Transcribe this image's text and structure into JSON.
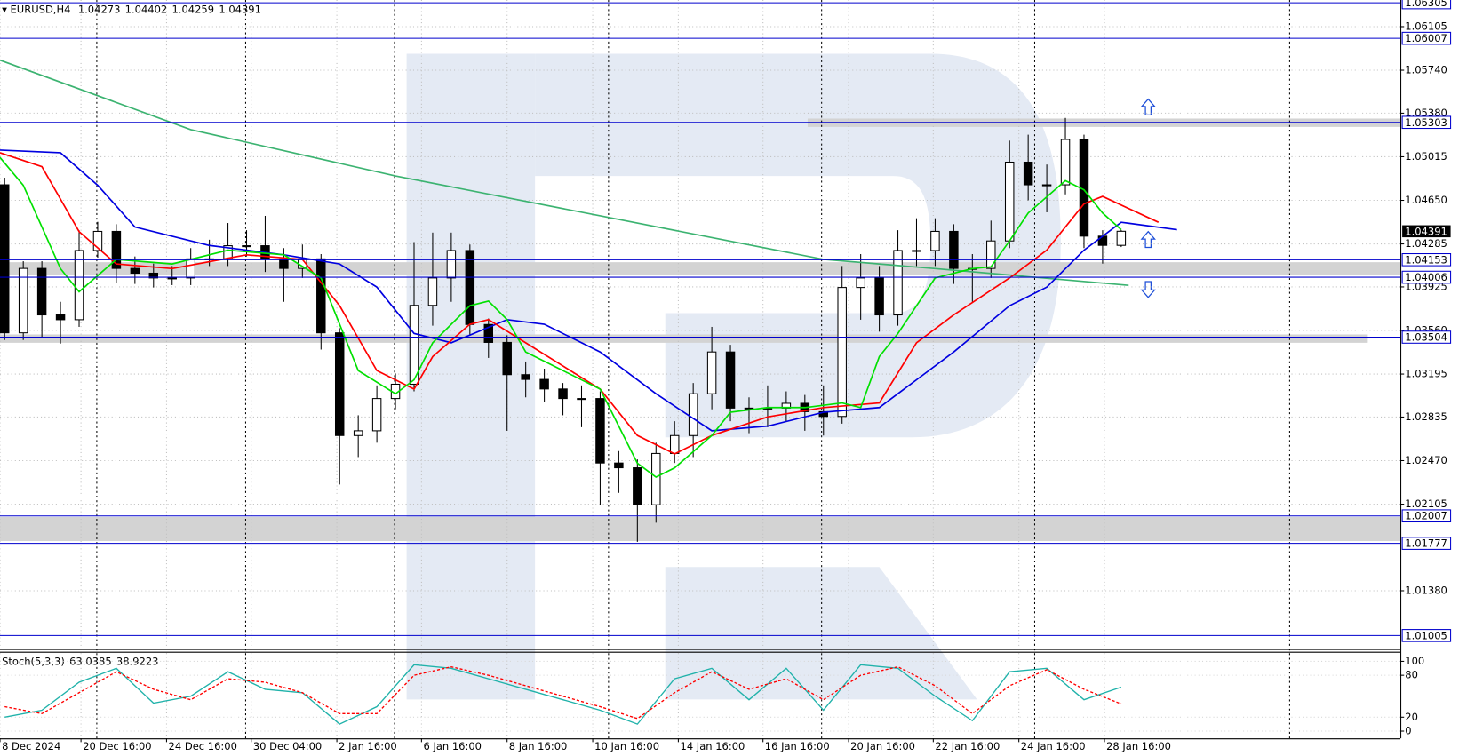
{
  "chart_data": [
    {
      "type": "candlestick",
      "title": "EURUSD,H4",
      "xlim": [
        0.75,
        76
      ],
      "xticks": [
        {
          "value": 0.75,
          "label": "8 Dec 2024"
        },
        {
          "value": 5.1,
          "label": "20 Dec 16:00"
        },
        {
          "value": 9.7,
          "label": "24 Dec 16:00"
        },
        {
          "value": 14.25,
          "label": "30 Dec 04:00"
        },
        {
          "value": 18.85,
          "label": "2 Jan 16:00"
        },
        {
          "value": 23.4,
          "label": "6 Jan 16:00"
        },
        {
          "value": 28,
          "label": "8 Jan 16:00"
        },
        {
          "value": 32.6,
          "label": "10 Jan 16:00"
        },
        {
          "value": 37.2,
          "label": "14 Jan 16:00"
        },
        {
          "value": 41.75,
          "label": "16 Jan 16:00"
        },
        {
          "value": 46.35,
          "label": "20 Jan 16:00"
        },
        {
          "value": 50.9,
          "label": "22 Jan 16:00"
        },
        {
          "value": 55.5,
          "label": "24 Jan 16:00"
        },
        {
          "value": 60.1,
          "label": "28 Jan 16:00"
        }
      ],
      "separators": [
        5.95,
        13.95,
        21.95,
        33.45,
        44.9,
        56.35,
        70.05
      ],
      "ylim": [
        1.00896,
        1.06328
      ],
      "yticks": [
        1.06105,
        {
          "value": 1.0574,
          "label": "1.05740"
        },
        {
          "value": 1.0538,
          "label": "1.05380"
        },
        1.05015,
        {
          "value": 1.0465,
          "label": "1.04650"
        },
        1.04285,
        1.03925,
        {
          "value": 1.0356,
          "label": "1.03560"
        },
        1.03195,
        1.02835,
        {
          "value": 1.0247,
          "label": "1.02470"
        },
        1.02105,
        {
          "value": 1.0138,
          "label": "1.01380"
        }
      ],
      "grid": true,
      "levels": [
        1.06305,
        1.06007,
        1.05303,
        1.04153,
        1.04006,
        1.03504,
        1.02007,
        1.01777,
        1.01005
      ],
      "level_color": "#0000cd",
      "up_color": "#ffffff",
      "down_color": "#000000",
      "open": [
        1.0478,
        1.0354,
        1.0408,
        1.0369,
        1.0365,
        1.0423,
        1.0439,
        1.0408,
        1.0404,
        1.04,
        1.04,
        1.0416,
        1.0416,
        1.0427,
        1.0427,
        1.0416,
        1.0408,
        1.0416,
        1.0354,
        1.0268,
        1.0272,
        1.0299,
        1.0311,
        1.0377,
        1.04,
        1.0423,
        1.0361,
        1.0346,
        1.0319,
        1.0315,
        1.0307,
        1.0299,
        1.0299,
        1.0245,
        1.0241,
        1.021,
        1.0253,
        1.0268,
        1.0303,
        1.0338,
        1.0291,
        1.0291,
        1.0291,
        1.0295,
        1.0288,
        1.0284,
        1.0392,
        1.04,
        1.0369,
        1.0423,
        1.0423,
        1.0439,
        1.0408,
        1.0408,
        1.0431,
        1.0497,
        1.0478,
        1.0478,
        1.0516,
        1.0435,
        1.04273
      ],
      "high": [
        1.0484,
        1.0414,
        1.0414,
        1.038,
        1.044,
        1.0447,
        1.0445,
        1.0418,
        1.0412,
        1.041,
        1.0425,
        1.0432,
        1.0446,
        1.044,
        1.0452,
        1.0425,
        1.0428,
        1.042,
        1.0358,
        1.0285,
        1.031,
        1.032,
        1.043,
        1.0438,
        1.0438,
        1.0428,
        1.0366,
        1.0352,
        1.033,
        1.0324,
        1.0312,
        1.031,
        1.0305,
        1.0255,
        1.0248,
        1.0262,
        1.028,
        1.0312,
        1.0359,
        1.0344,
        1.03,
        1.031,
        1.0305,
        1.0302,
        1.031,
        1.041,
        1.042,
        1.041,
        1.044,
        1.045,
        1.045,
        1.0445,
        1.042,
        1.0448,
        1.0515,
        1.052,
        1.0495,
        1.0534,
        1.052,
        1.044,
        1.04402
      ],
      "low": [
        1.0348,
        1.0348,
        1.035,
        1.0345,
        1.0359,
        1.0417,
        1.0396,
        1.0395,
        1.0392,
        1.0394,
        1.0394,
        1.041,
        1.041,
        1.0418,
        1.0405,
        1.038,
        1.04,
        1.034,
        1.0227,
        1.025,
        1.0262,
        1.029,
        1.0305,
        1.036,
        1.038,
        1.0352,
        1.0333,
        1.0272,
        1.03,
        1.0296,
        1.0285,
        1.0275,
        1.021,
        1.022,
        1.0179,
        1.0195,
        1.0245,
        1.025,
        1.029,
        1.028,
        1.027,
        1.0275,
        1.028,
        1.0272,
        1.0268,
        1.0278,
        1.0365,
        1.0355,
        1.036,
        1.041,
        1.041,
        1.0395,
        1.038,
        1.04,
        1.0425,
        1.0465,
        1.0455,
        1.047,
        1.0425,
        1.0412,
        1.04259
      ],
      "close": [
        1.0354,
        1.0408,
        1.0369,
        1.0365,
        1.0423,
        1.0439,
        1.0408,
        1.0404,
        1.04,
        1.04,
        1.0416,
        1.0416,
        1.0427,
        1.0427,
        1.0416,
        1.0408,
        1.0416,
        1.0354,
        1.0268,
        1.0272,
        1.0299,
        1.0311,
        1.0377,
        1.04,
        1.0423,
        1.0361,
        1.0346,
        1.0319,
        1.0315,
        1.0307,
        1.0299,
        1.0299,
        1.0245,
        1.0241,
        1.021,
        1.0253,
        1.0268,
        1.0303,
        1.0338,
        1.0291,
        1.0291,
        1.0291,
        1.0295,
        1.0288,
        1.0284,
        1.0392,
        1.04,
        1.0369,
        1.0423,
        1.0423,
        1.0439,
        1.0408,
        1.0408,
        1.0431,
        1.0497,
        1.0478,
        1.0478,
        1.0516,
        1.0435,
        1.04273,
        1.04391
      ],
      "moving_averages": [
        {
          "color": "#3cb371",
          "x": [
            0.75,
            11,
            22,
            33.5,
            45,
            51,
            61.4
          ],
          "values": [
            1.05824,
            1.05242,
            1.04854,
            1.04505,
            1.04156,
            1.04078,
            1.03938
          ]
        },
        {
          "color": "#0000e0",
          "x": [
            0.75,
            4,
            6,
            8,
            12,
            16,
            19,
            21,
            23,
            25,
            28,
            30,
            33,
            36,
            39,
            42,
            45,
            48,
            50,
            52,
            55,
            57,
            59,
            61,
            64
          ],
          "values": [
            1.05071,
            1.05048,
            1.04776,
            1.04427,
            1.04272,
            1.04194,
            1.04117,
            1.03923,
            1.03535,
            1.03457,
            1.03651,
            1.03612,
            1.0338,
            1.0303,
            1.0272,
            1.02759,
            1.02875,
            1.02914,
            1.03147,
            1.0338,
            1.03767,
            1.03923,
            1.04233,
            1.04466,
            1.04404
          ]
        },
        {
          "color": "#ff0000",
          "x": [
            0.75,
            3,
            5,
            7,
            10,
            14,
            17,
            19,
            21,
            23,
            24,
            26,
            27,
            29,
            31,
            33,
            35,
            37,
            39,
            42,
            45,
            48,
            50,
            52,
            55,
            57,
            59,
            60,
            63
          ],
          "values": [
            1.05048,
            1.04932,
            1.04388,
            1.04117,
            1.04078,
            1.04194,
            1.04155,
            1.03767,
            1.03224,
            1.03069,
            1.03341,
            1.03612,
            1.03651,
            1.03457,
            1.03263,
            1.03069,
            1.02681,
            1.02526,
            1.02681,
            1.02836,
            1.02914,
            1.02953,
            1.03457,
            1.0369,
            1.04,
            1.04233,
            1.04621,
            1.04683,
            1.04466
          ]
        },
        {
          "color": "#00e000",
          "x": [
            0.75,
            2,
            4,
            5,
            7,
            10,
            13,
            16,
            18,
            20,
            22,
            23,
            24,
            26,
            27,
            28,
            29,
            31,
            33,
            35,
            36,
            37,
            39,
            40,
            42,
            44,
            46,
            47,
            48,
            49,
            50,
            51,
            53,
            54,
            55,
            56,
            58,
            59,
            60,
            61
          ],
          "values": [
            1.05009,
            1.04776,
            1.04078,
            1.03884,
            1.04155,
            1.04117,
            1.04233,
            1.04194,
            1.04,
            1.03224,
            1.0303,
            1.03147,
            1.03457,
            1.03767,
            1.03806,
            1.03651,
            1.0338,
            1.03224,
            1.03069,
            1.02448,
            1.02332,
            1.02409,
            1.02681,
            1.02875,
            1.02914,
            1.02914,
            1.02953,
            1.02914,
            1.03341,
            1.03535,
            1.03767,
            1.04,
            1.04078,
            1.04093,
            1.04311,
            1.04544,
            1.04815,
            1.04738,
            1.04544,
            1.04404
          ]
        }
      ]
    },
    {
      "type": "line",
      "title": "Stoch(5,3,3)",
      "xlim": [
        0.75,
        76
      ],
      "ylim": [
        -10.4,
        111.7
      ],
      "yticks": [
        100,
        80,
        20,
        0
      ],
      "grid": true,
      "series": [
        {
          "color": "#20b2aa",
          "dashed": false,
          "x": [
            1,
            3,
            5,
            7,
            9,
            11,
            13,
            15,
            17,
            19,
            21,
            23,
            25,
            27,
            29,
            31,
            33,
            35,
            37,
            39,
            41,
            43,
            45,
            47,
            49,
            51,
            53,
            55,
            57,
            59,
            61
          ],
          "values": [
            20,
            30,
            70,
            90,
            40,
            50,
            85,
            60,
            55,
            10,
            35,
            95,
            90,
            75,
            60,
            45,
            30,
            10,
            75,
            90,
            45,
            90,
            30,
            95,
            90,
            50,
            15,
            85,
            90,
            45,
            63.0385
          ]
        },
        {
          "color": "#ff0000",
          "dashed": true,
          "x": [
            1,
            3,
            5,
            7,
            9,
            11,
            13,
            15,
            17,
            19,
            21,
            23,
            25,
            27,
            29,
            31,
            33,
            35,
            37,
            39,
            41,
            43,
            45,
            47,
            49,
            51,
            53,
            55,
            57,
            59,
            61
          ],
          "values": [
            35,
            25,
            55,
            85,
            60,
            45,
            75,
            70,
            55,
            25,
            25,
            80,
            92,
            80,
            65,
            50,
            35,
            18,
            55,
            85,
            60,
            75,
            45,
            80,
            92,
            65,
            25,
            65,
            88,
            60,
            38.9223
          ]
        }
      ]
    }
  ]
}
